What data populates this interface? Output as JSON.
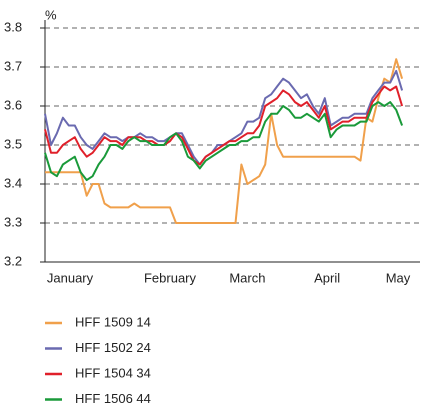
{
  "chart_data": {
    "type": "line",
    "y_label": "%",
    "xlim": [
      0,
      63
    ],
    "xticks": [
      {
        "value": 4.2,
        "label": "January"
      },
      {
        "value": 21,
        "label": "February"
      },
      {
        "value": 34,
        "label": "March"
      },
      {
        "value": 47.4,
        "label": "April"
      },
      {
        "value": 59.3,
        "label": "May"
      }
    ],
    "ylim": [
      3.2,
      3.8
    ],
    "yticks": [
      3.2,
      3.3,
      3.4,
      3.5,
      3.6,
      3.7,
      3.8
    ],
    "grid": true,
    "legend": "bottom",
    "series": [
      {
        "name": "HFF 1509 14",
        "color": "#f0a04b",
        "values": [
          3.43,
          3.43,
          3.43,
          3.43,
          3.43,
          3.43,
          3.43,
          3.37,
          3.4,
          3.4,
          3.35,
          3.34,
          3.34,
          3.34,
          3.34,
          3.35,
          3.34,
          3.34,
          3.34,
          3.34,
          3.34,
          3.34,
          3.3,
          3.3,
          3.3,
          3.3,
          3.3,
          3.3,
          3.3,
          3.3,
          3.3,
          3.3,
          3.3,
          3.45,
          3.4,
          3.41,
          3.42,
          3.45,
          3.58,
          3.5,
          3.47,
          3.47,
          3.47,
          3.47,
          3.47,
          3.47,
          3.47,
          3.47,
          3.47,
          3.47,
          3.47,
          3.47,
          3.47,
          3.46,
          3.57,
          3.56,
          3.62,
          3.67,
          3.66,
          3.72,
          3.67
        ]
      },
      {
        "name": "HFF 1502 24",
        "color": "#6a6ab0",
        "values": [
          3.58,
          3.5,
          3.53,
          3.57,
          3.55,
          3.55,
          3.52,
          3.5,
          3.49,
          3.51,
          3.53,
          3.52,
          3.52,
          3.51,
          3.52,
          3.52,
          3.53,
          3.52,
          3.52,
          3.51,
          3.51,
          3.52,
          3.53,
          3.53,
          3.5,
          3.47,
          3.45,
          3.47,
          3.48,
          3.5,
          3.5,
          3.51,
          3.52,
          3.53,
          3.56,
          3.56,
          3.57,
          3.62,
          3.63,
          3.65,
          3.67,
          3.66,
          3.64,
          3.62,
          3.63,
          3.6,
          3.58,
          3.62,
          3.55,
          3.56,
          3.57,
          3.57,
          3.58,
          3.58,
          3.58,
          3.62,
          3.64,
          3.66,
          3.66,
          3.69,
          3.64
        ]
      },
      {
        "name": "HFF 1504 34",
        "color": "#e0202a",
        "values": [
          3.54,
          3.48,
          3.48,
          3.5,
          3.51,
          3.52,
          3.49,
          3.47,
          3.48,
          3.5,
          3.52,
          3.51,
          3.51,
          3.5,
          3.52,
          3.52,
          3.52,
          3.51,
          3.51,
          3.5,
          3.5,
          3.51,
          3.53,
          3.52,
          3.49,
          3.46,
          3.45,
          3.47,
          3.48,
          3.49,
          3.5,
          3.51,
          3.51,
          3.52,
          3.53,
          3.53,
          3.55,
          3.6,
          3.61,
          3.62,
          3.64,
          3.63,
          3.61,
          3.6,
          3.61,
          3.59,
          3.57,
          3.6,
          3.54,
          3.55,
          3.56,
          3.56,
          3.57,
          3.57,
          3.57,
          3.61,
          3.63,
          3.65,
          3.64,
          3.65,
          3.6
        ]
      },
      {
        "name": "HFF 1506 44",
        "color": "#1a9a3a",
        "values": [
          3.48,
          3.43,
          3.42,
          3.45,
          3.46,
          3.47,
          3.43,
          3.41,
          3.42,
          3.45,
          3.47,
          3.5,
          3.5,
          3.49,
          3.51,
          3.52,
          3.51,
          3.51,
          3.5,
          3.5,
          3.5,
          3.52,
          3.53,
          3.51,
          3.47,
          3.46,
          3.44,
          3.46,
          3.47,
          3.48,
          3.49,
          3.5,
          3.5,
          3.51,
          3.51,
          3.52,
          3.52,
          3.56,
          3.58,
          3.58,
          3.6,
          3.59,
          3.57,
          3.57,
          3.58,
          3.57,
          3.56,
          3.58,
          3.52,
          3.54,
          3.55,
          3.55,
          3.55,
          3.56,
          3.56,
          3.6,
          3.61,
          3.6,
          3.61,
          3.59,
          3.55
        ]
      }
    ]
  }
}
